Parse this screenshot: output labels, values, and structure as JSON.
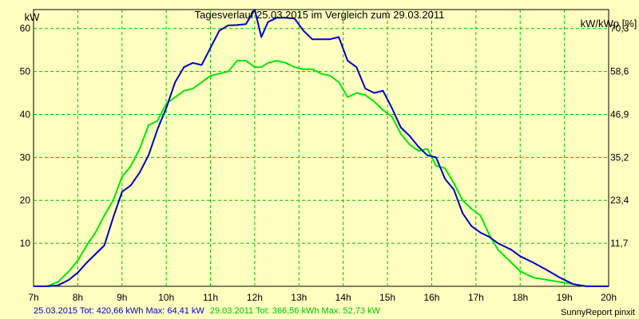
{
  "chart_data": {
    "type": "line",
    "title": "Tagesverlauf 25.03.2015 im Vergleich zum 29.03.2011",
    "ylabel_left": "kW",
    "ylabel_right": "kW/kWp [%]",
    "x_ticks": [
      "7h",
      "8h",
      "9h",
      "10h",
      "11h",
      "12h",
      "13h",
      "14h",
      "15h",
      "16h",
      "17h",
      "18h",
      "19h",
      "20h"
    ],
    "y_ticks_left": [
      "10",
      "20",
      "30",
      "40",
      "50",
      "60"
    ],
    "y_ticks_right": [
      "11,7",
      "23,4",
      "35,2",
      "46,9",
      "58,6",
      "70,3"
    ],
    "xlim": [
      7,
      20
    ],
    "ylim": [
      0,
      64.4
    ],
    "grid": true,
    "series": [
      {
        "name": "25.03.2015",
        "color": "#0000C8",
        "x": [
          7.0,
          7.3,
          7.55,
          7.8,
          8.0,
          8.2,
          8.4,
          8.6,
          8.8,
          9.0,
          9.2,
          9.4,
          9.6,
          9.8,
          10.0,
          10.2,
          10.4,
          10.6,
          10.8,
          11.0,
          11.2,
          11.4,
          11.6,
          11.8,
          12.0,
          12.15,
          12.3,
          12.5,
          12.7,
          12.9,
          13.1,
          13.3,
          13.5,
          13.7,
          13.9,
          14.1,
          14.3,
          14.5,
          14.7,
          14.9,
          15.1,
          15.3,
          15.5,
          15.7,
          15.9,
          16.1,
          16.3,
          16.5,
          16.7,
          16.9,
          17.1,
          17.3,
          17.5,
          17.8,
          18.0,
          18.3,
          18.6,
          18.9,
          19.2,
          19.5,
          19.7,
          20.0
        ],
        "y": [
          0.0,
          0.0,
          0.2,
          1.5,
          3.2,
          5.5,
          7.5,
          9.5,
          16.0,
          22.0,
          23.5,
          26.5,
          30.5,
          36.5,
          41.5,
          47.5,
          51.0,
          52.0,
          51.5,
          55.5,
          59.5,
          60.7,
          60.8,
          61.0,
          64.4,
          58.0,
          61.5,
          62.5,
          62.5,
          62.3,
          59.5,
          57.5,
          57.5,
          57.5,
          58.0,
          52.5,
          51.0,
          46.0,
          45.0,
          45.5,
          41.5,
          37.0,
          35.0,
          32.5,
          30.5,
          30.0,
          25.0,
          22.5,
          17.0,
          14.0,
          12.5,
          11.5,
          10.0,
          8.5,
          7.0,
          5.5,
          3.8,
          2.0,
          0.5,
          0.0,
          0.0,
          0.0
        ]
      },
      {
        "name": "29.03.2011",
        "color": "#00E800",
        "x": [
          7.0,
          7.3,
          7.55,
          7.8,
          8.0,
          8.2,
          8.4,
          8.6,
          8.8,
          9.0,
          9.2,
          9.4,
          9.6,
          9.8,
          10.0,
          10.2,
          10.4,
          10.6,
          10.8,
          11.0,
          11.2,
          11.4,
          11.6,
          11.8,
          12.0,
          12.15,
          12.3,
          12.5,
          12.7,
          12.9,
          13.1,
          13.3,
          13.5,
          13.7,
          13.9,
          14.1,
          14.3,
          14.5,
          14.7,
          14.9,
          15.1,
          15.3,
          15.5,
          15.7,
          15.9,
          16.1,
          16.3,
          16.5,
          16.7,
          16.9,
          17.1,
          17.3,
          17.5,
          17.8,
          18.0,
          18.3,
          18.6,
          18.9,
          19.2,
          19.5,
          19.7,
          20.0
        ],
        "y": [
          0.0,
          0.0,
          1.0,
          3.5,
          6.0,
          9.5,
          12.5,
          16.5,
          20.0,
          25.5,
          28.0,
          32.0,
          37.5,
          38.5,
          42.5,
          44.0,
          45.5,
          46.0,
          47.5,
          49.0,
          49.5,
          50.0,
          52.5,
          52.5,
          51.0,
          51.0,
          52.0,
          52.5,
          52.0,
          51.0,
          50.5,
          50.5,
          49.5,
          49.0,
          47.5,
          44.0,
          45.0,
          44.5,
          43.0,
          41.0,
          39.5,
          35.5,
          33.0,
          31.5,
          32.0,
          28.0,
          27.5,
          24.0,
          20.0,
          18.0,
          16.5,
          12.0,
          8.5,
          5.5,
          3.5,
          2.0,
          1.5,
          1.0,
          0.5,
          0.0,
          0.0,
          0.0
        ]
      }
    ]
  },
  "footer": {
    "left_s1": "25.03.2015 Tot: 420,66 kWh Max: 64,41 kW",
    "left_s2": "29.03.2011 Tot: 366,56 kWh Max: 52,73 kW",
    "right": "SunnyReport pinxit"
  }
}
